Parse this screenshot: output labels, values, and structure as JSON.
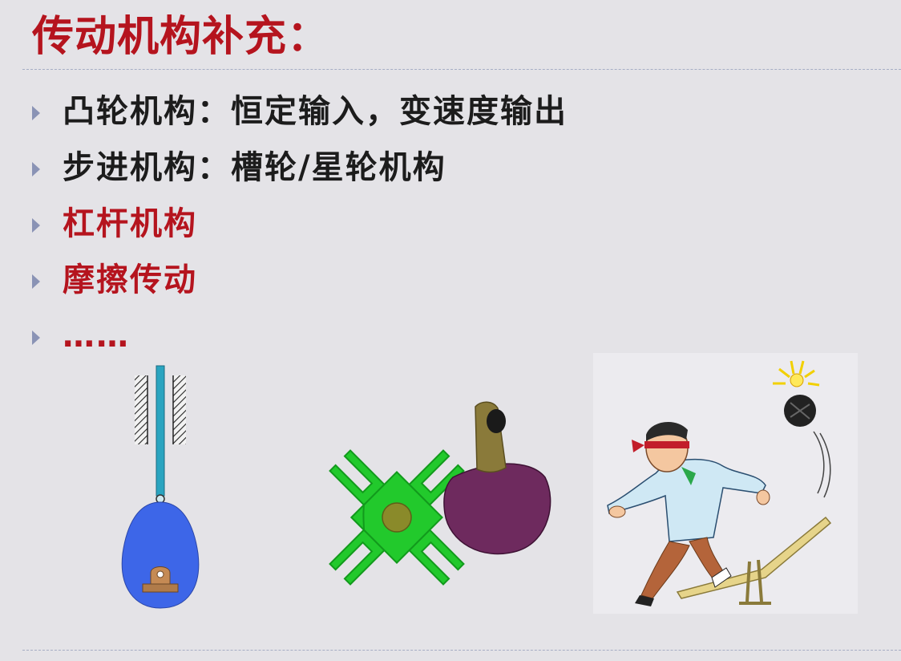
{
  "slide": {
    "title": "传动机构补充：",
    "title_color": "#b5141e",
    "bullets": [
      {
        "text": "凸轮机构：恒定输入，变速度输出",
        "color": "#1c1c1c"
      },
      {
        "text": "步进机构：槽轮/星轮机构",
        "color": "#1c1c1c"
      },
      {
        "text": "杠杆机构",
        "color": "#b5141e"
      },
      {
        "text": "摩擦传动",
        "color": "#b5141e"
      },
      {
        "text": "……",
        "color": "#b5141e"
      }
    ],
    "bullet_icon": "triangle-bullet-icon",
    "illustrations": [
      {
        "name": "cam-follower-mechanism-illustration",
        "cam_color": "#3d66e8",
        "follower_color": "#2aa4c0"
      },
      {
        "name": "geneva-mechanism-illustration",
        "wheel_color": "#22c92c",
        "driver_color": "#6e2a5e",
        "pin_color": "#8a7a3a"
      },
      {
        "name": "lever-cartoon-illustration"
      }
    ]
  }
}
